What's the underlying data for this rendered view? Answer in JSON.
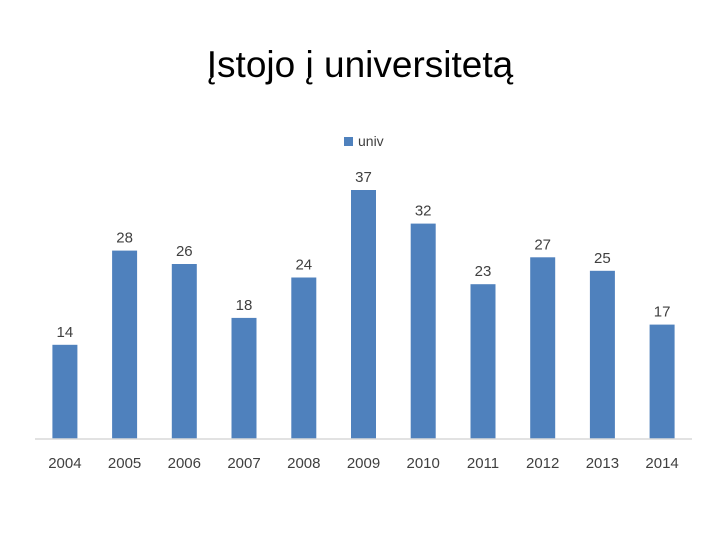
{
  "title": "Įstojo į universitetą",
  "chart_data": {
    "type": "bar",
    "title": "Įstojo į universitetą",
    "categories": [
      "2004",
      "2005",
      "2006",
      "2007",
      "2008",
      "2009",
      "2010",
      "2011",
      "2012",
      "2013",
      "2014"
    ],
    "series": [
      {
        "name": "univ",
        "values": [
          14,
          28,
          26,
          18,
          24,
          37,
          32,
          23,
          27,
          25,
          17
        ],
        "color": "#4f81bd"
      }
    ],
    "data_labels": true,
    "legend_position": "top",
    "grid": false,
    "ylim": [
      0,
      40
    ],
    "axis_color": "#d9d9d9"
  }
}
